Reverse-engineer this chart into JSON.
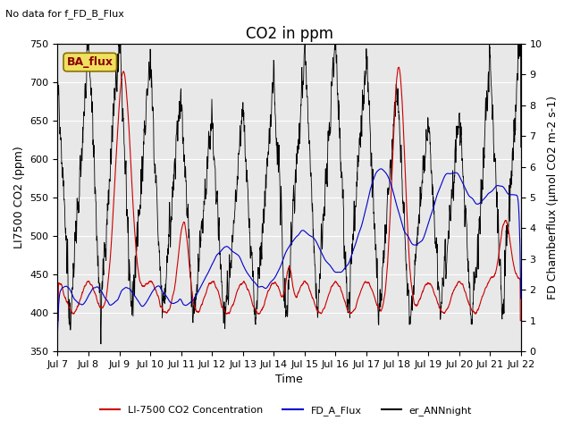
{
  "title": "CO2 in ppm",
  "top_left_text": "No data for f_FD_B_Flux",
  "box_label": "BA_flux",
  "ylabel_left": "LI7500 CO2 (ppm)",
  "ylabel_right": "FD Chamberflux (μmol CO2 m-2 s-1)",
  "xlabel": "Time",
  "ylim_left": [
    350,
    750
  ],
  "ylim_right": [
    0.0,
    10.0
  ],
  "yticks_left": [
    350,
    400,
    450,
    500,
    550,
    600,
    650,
    700,
    750
  ],
  "yticks_right": [
    0.0,
    1.0,
    2.0,
    3.0,
    4.0,
    5.0,
    6.0,
    7.0,
    8.0,
    9.0,
    10.0
  ],
  "xtick_labels": [
    "Jul 7",
    "Jul 8",
    "Jul 9",
    "Jul 10",
    "Jul 11",
    "Jul 12",
    "Jul 13",
    "Jul 14",
    "Jul 15",
    "Jul 16",
    "Jul 17",
    "Jul 18",
    "Jul 19",
    "Jul 20",
    "Jul 21",
    "Jul 22"
  ],
  "legend_entries": [
    {
      "label": "LI-7500 CO2 Concentration",
      "color": "#cc0000"
    },
    {
      "label": "FD_A_Flux",
      "color": "#0000cc"
    },
    {
      "label": "er_ANNnight",
      "color": "#000000"
    }
  ],
  "bg_color": "#e8e8e8",
  "fig_bg": "#ffffff",
  "box_fill": "#f0e060",
  "box_edge_color": "#8b7000",
  "box_text_color": "#8b0000",
  "title_fontsize": 12,
  "label_fontsize": 9,
  "tick_fontsize": 8
}
